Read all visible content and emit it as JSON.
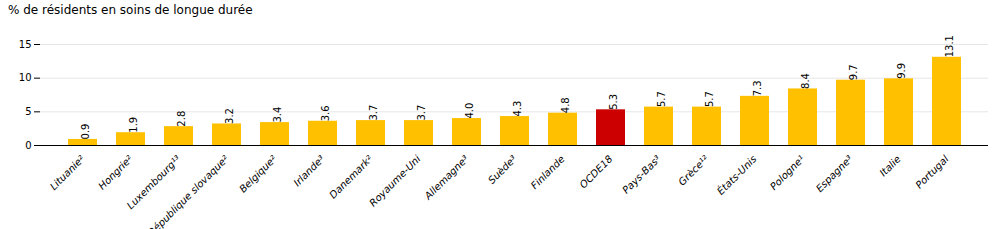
{
  "chart_data": {
    "type": "bar",
    "ylabel": "% de résidents en soins de longue durée",
    "categories": [
      "Lituanie²",
      "Hongrie²",
      "Luxembourg¹³",
      "République slovaque²",
      "Belgique²",
      "Irlande³",
      "Danemark²",
      "Royaume-Uni",
      "Allemagne³",
      "Suède³",
      "Finlande",
      "OCDE18",
      "Pays-Bas³",
      "Grèce¹²",
      "États-Unis",
      "Pologne¹",
      "Espagne³",
      "Italie",
      "Portugal"
    ],
    "values": [
      0.9,
      1.9,
      2.8,
      3.2,
      3.4,
      3.6,
      3.7,
      3.7,
      4.0,
      4.3,
      4.8,
      5.3,
      5.7,
      5.7,
      7.3,
      8.4,
      9.7,
      9.9,
      13.1
    ],
    "value_labels": [
      "0.9",
      "1.9",
      "2.8",
      "3.2",
      "3.4",
      "3.6",
      "3.7",
      "3.7",
      "4.0",
      "4.3",
      "4.8",
      "5.3",
      "5.7",
      "5.7",
      "7.3",
      "8.4",
      "9.7",
      "9.9",
      "13.1"
    ],
    "colors": [
      "#FFC000",
      "#FFC000",
      "#FFC000",
      "#FFC000",
      "#FFC000",
      "#FFC000",
      "#FFC000",
      "#FFC000",
      "#FFC000",
      "#FFC000",
      "#FFC000",
      "#CC0000",
      "#FFC000",
      "#FFC000",
      "#FFC000",
      "#FFC000",
      "#FFC000",
      "#FFC000",
      "#FFC000"
    ],
    "ylim": [
      0,
      15
    ],
    "yticks": [
      0,
      5,
      10,
      15
    ],
    "grid": true,
    "data_labels": true
  }
}
